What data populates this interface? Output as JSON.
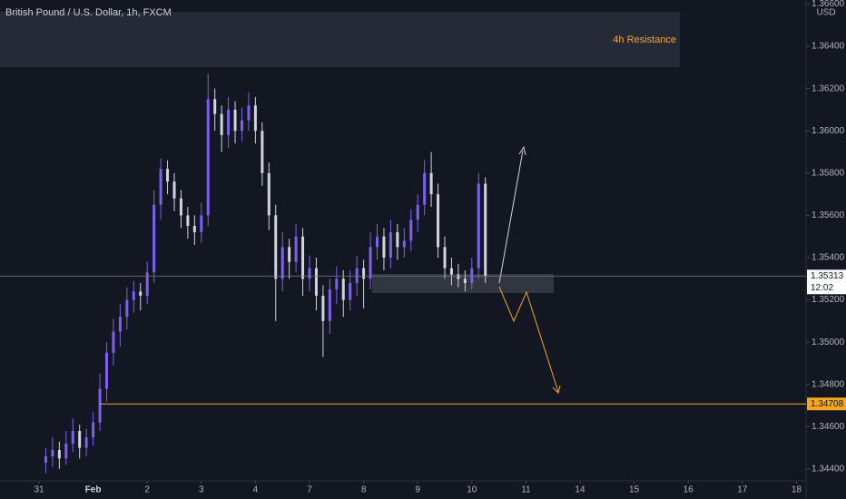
{
  "chart_data": {
    "type": "candlestick",
    "title": "British Pound / U.S. Dollar, 1h, FXCM",
    "annotation": "4h Resistance",
    "currency": "USD",
    "last_price": {
      "value": 1.35313,
      "label": "1.35313"
    },
    "countdown": "12:02",
    "level": {
      "value": 1.34708,
      "label": "1.34708"
    },
    "up_color": "#7e5ff0",
    "down_color": "#d1d4dc",
    "level_color": "#f5a623",
    "xlim": [
      -0.7215,
      14.178
    ],
    "xticks": [
      {
        "value": 0,
        "label": "31"
      },
      {
        "value": 1,
        "label": "Feb"
      },
      {
        "value": 2,
        "label": "2"
      },
      {
        "value": 3,
        "label": "3"
      },
      {
        "value": 4,
        "label": "4"
      },
      {
        "value": 5,
        "label": "7"
      },
      {
        "value": 6,
        "label": "8"
      },
      {
        "value": 7,
        "label": "9"
      },
      {
        "value": 8,
        "label": "10"
      },
      {
        "value": 9,
        "label": "11"
      },
      {
        "value": 10,
        "label": "14"
      },
      {
        "value": 11,
        "label": "15"
      },
      {
        "value": 12,
        "label": "16"
      },
      {
        "value": 13,
        "label": "17"
      },
      {
        "value": 14,
        "label": "18"
      }
    ],
    "ylim": [
      1.34344,
      1.36619
    ],
    "yticks": [
      {
        "value": 1.344,
        "label": "1.34400"
      },
      {
        "value": 1.346,
        "label": "1.34600"
      },
      {
        "value": 1.348,
        "label": "1.34800"
      },
      {
        "value": 1.35,
        "label": "1.35000"
      },
      {
        "value": 1.352,
        "label": "1.35200"
      },
      {
        "value": 1.354,
        "label": "1.35400"
      },
      {
        "value": 1.356,
        "label": "1.35600"
      },
      {
        "value": 1.358,
        "label": "1.35800"
      },
      {
        "value": 1.36,
        "label": "1.36000"
      },
      {
        "value": 1.362,
        "label": "1.36200"
      },
      {
        "value": 1.364,
        "label": "1.36400"
      },
      {
        "value": 1.366,
        "label": "1.36600"
      }
    ],
    "x": [
      0.125,
      0.25,
      0.375,
      0.5,
      0.625,
      0.75,
      0.875,
      1,
      1.125,
      1.25,
      1.375,
      1.5,
      1.625,
      1.75,
      1.875,
      2,
      2.125,
      2.25,
      2.375,
      2.5,
      2.625,
      2.75,
      2.875,
      3,
      3.125,
      3.25,
      3.375,
      3.5,
      3.625,
      3.75,
      3.875,
      4,
      4.125,
      4.25,
      4.375,
      4.5,
      4.625,
      4.75,
      4.875,
      5,
      5.125,
      5.25,
      5.375,
      5.5,
      5.625,
      5.75,
      5.875,
      6,
      6.125,
      6.25,
      6.375,
      6.5,
      6.625,
      6.75,
      6.875,
      7,
      7.125,
      7.25,
      7.375,
      7.5,
      7.625,
      7.75,
      7.875,
      8,
      8.125,
      8.25
    ],
    "ohlc": [
      [
        1.3443,
        1.345,
        1.3438,
        1.3446
      ],
      [
        1.3446,
        1.3455,
        1.3441,
        1.3449
      ],
      [
        1.3449,
        1.3453,
        1.344,
        1.3445
      ],
      [
        1.3445,
        1.3458,
        1.3442,
        1.3452
      ],
      [
        1.3452,
        1.3464,
        1.3448,
        1.3458
      ],
      [
        1.3458,
        1.3461,
        1.3445,
        1.345
      ],
      [
        1.345,
        1.3459,
        1.3446,
        1.3455
      ],
      [
        1.3455,
        1.3467,
        1.3451,
        1.3462
      ],
      [
        1.3462,
        1.3485,
        1.3458,
        1.3478
      ],
      [
        1.3478,
        1.35,
        1.3472,
        1.3495
      ],
      [
        1.3495,
        1.3511,
        1.3489,
        1.3505
      ],
      [
        1.3505,
        1.3518,
        1.3498,
        1.3512
      ],
      [
        1.3512,
        1.3526,
        1.3506,
        1.352
      ],
      [
        1.352,
        1.3529,
        1.3514,
        1.3524
      ],
      [
        1.3524,
        1.3528,
        1.3515,
        1.3522
      ],
      [
        1.3522,
        1.3538,
        1.3518,
        1.3533
      ],
      [
        1.3533,
        1.3572,
        1.3528,
        1.3565
      ],
      [
        1.3565,
        1.3587,
        1.3558,
        1.3582
      ],
      [
        1.3582,
        1.3586,
        1.357,
        1.3576
      ],
      [
        1.3576,
        1.358,
        1.3562,
        1.3568
      ],
      [
        1.3568,
        1.3572,
        1.3554,
        1.356
      ],
      [
        1.356,
        1.3564,
        1.3549,
        1.3555
      ],
      [
        1.3555,
        1.356,
        1.3546,
        1.3552
      ],
      [
        1.3552,
        1.3566,
        1.3547,
        1.356
      ],
      [
        1.356,
        1.3627,
        1.3555,
        1.3615
      ],
      [
        1.3615,
        1.362,
        1.36,
        1.3608
      ],
      [
        1.3608,
        1.3612,
        1.359,
        1.3598
      ],
      [
        1.3598,
        1.3616,
        1.3592,
        1.361
      ],
      [
        1.361,
        1.3614,
        1.3594,
        1.36
      ],
      [
        1.36,
        1.3611,
        1.3595,
        1.3605
      ],
      [
        1.3605,
        1.3618,
        1.36,
        1.3612
      ],
      [
        1.3612,
        1.3616,
        1.3594,
        1.36
      ],
      [
        1.36,
        1.3604,
        1.3574,
        1.358
      ],
      [
        1.358,
        1.3585,
        1.3553,
        1.356
      ],
      [
        1.356,
        1.3565,
        1.351,
        1.353
      ],
      [
        1.353,
        1.3552,
        1.3524,
        1.3545
      ],
      [
        1.3545,
        1.3549,
        1.353,
        1.3538
      ],
      [
        1.3538,
        1.3556,
        1.3533,
        1.355
      ],
      [
        1.355,
        1.3554,
        1.3522,
        1.353
      ],
      [
        1.353,
        1.3541,
        1.3524,
        1.3535
      ],
      [
        1.3535,
        1.354,
        1.3515,
        1.3522
      ],
      [
        1.3522,
        1.3527,
        1.3493,
        1.351
      ],
      [
        1.351,
        1.353,
        1.3504,
        1.3525
      ],
      [
        1.3525,
        1.3536,
        1.3518,
        1.353
      ],
      [
        1.353,
        1.3534,
        1.3512,
        1.352
      ],
      [
        1.352,
        1.3534,
        1.3515,
        1.3528
      ],
      [
        1.3528,
        1.3541,
        1.3522,
        1.3535
      ],
      [
        1.3535,
        1.3539,
        1.3516,
        1.353
      ],
      [
        1.353,
        1.3552,
        1.3525,
        1.3545
      ],
      [
        1.3545,
        1.3556,
        1.3539,
        1.355
      ],
      [
        1.355,
        1.3554,
        1.3534,
        1.354
      ],
      [
        1.354,
        1.3558,
        1.3535,
        1.3552
      ],
      [
        1.3552,
        1.3556,
        1.3539,
        1.3545
      ],
      [
        1.3545,
        1.3554,
        1.354,
        1.3548
      ],
      [
        1.3548,
        1.3563,
        1.3543,
        1.3558
      ],
      [
        1.3558,
        1.357,
        1.3552,
        1.3565
      ],
      [
        1.3565,
        1.3586,
        1.356,
        1.358
      ],
      [
        1.358,
        1.359,
        1.3564,
        1.357
      ],
      [
        1.357,
        1.3575,
        1.354,
        1.3545
      ],
      [
        1.3545,
        1.355,
        1.353,
        1.3535
      ],
      [
        1.3535,
        1.354,
        1.3527,
        1.3532
      ],
      [
        1.3532,
        1.3537,
        1.3526,
        1.353
      ],
      [
        1.353,
        1.3534,
        1.3524,
        1.3528
      ],
      [
        1.3528,
        1.354,
        1.3525,
        1.3535
      ],
      [
        1.3535,
        1.358,
        1.353,
        1.3575
      ],
      [
        1.3575,
        1.3578,
        1.3528,
        1.35313
      ]
    ]
  }
}
